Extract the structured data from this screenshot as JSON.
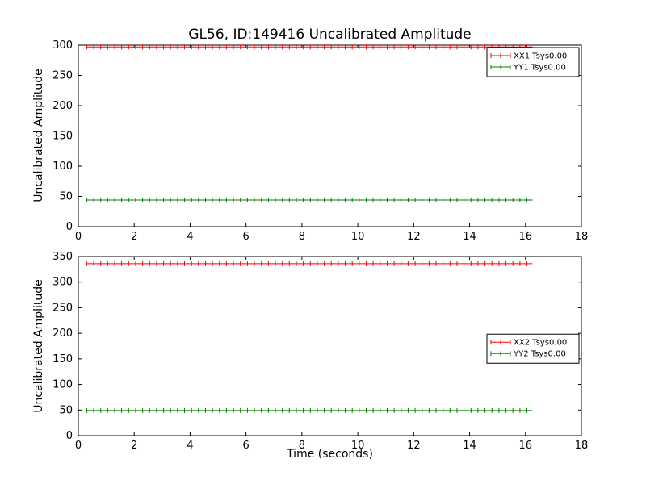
{
  "title": "GL56, ID:149416 Uncalibrated Amplitude",
  "xlabel": "Time (seconds)",
  "ylabel": "Uncalibrated Amplitude",
  "chart_data": [
    {
      "type": "line",
      "subplot": "top",
      "ylabel": "Uncalibrated Amplitude",
      "xlim": [
        0,
        18
      ],
      "ylim": [
        0,
        300
      ],
      "xticks": [
        0,
        2,
        4,
        6,
        8,
        10,
        12,
        14,
        16,
        18
      ],
      "yticks": [
        0,
        50,
        100,
        150,
        200,
        250,
        300
      ],
      "x_start": 0.3,
      "x_end": 16.25,
      "marker": "+",
      "marker_step": 0.25,
      "grid": false,
      "legend_position": "upper-right",
      "legend_anchor_y": 0.0,
      "series": [
        {
          "name": "XX1 Tsys0.00",
          "color": "#ff0000",
          "value": 297
        },
        {
          "name": "YY1 Tsys0.00",
          "color": "#008000",
          "value": 44
        }
      ]
    },
    {
      "type": "line",
      "subplot": "bottom",
      "ylabel": "Uncalibrated Amplitude",
      "xlim": [
        0,
        18
      ],
      "ylim": [
        0,
        350
      ],
      "xticks": [
        0,
        2,
        4,
        6,
        8,
        10,
        12,
        14,
        16,
        18
      ],
      "yticks": [
        0,
        50,
        100,
        150,
        200,
        250,
        300,
        350
      ],
      "x_start": 0.3,
      "x_end": 16.25,
      "marker": "+",
      "marker_step": 0.25,
      "grid": false,
      "legend_position": "center-right",
      "legend_anchor_y": 0.42,
      "series": [
        {
          "name": "XX2 Tsys0.00",
          "color": "#ff0000",
          "value": 336
        },
        {
          "name": "YY2 Tsys0.00",
          "color": "#008000",
          "value": 49
        }
      ]
    }
  ]
}
